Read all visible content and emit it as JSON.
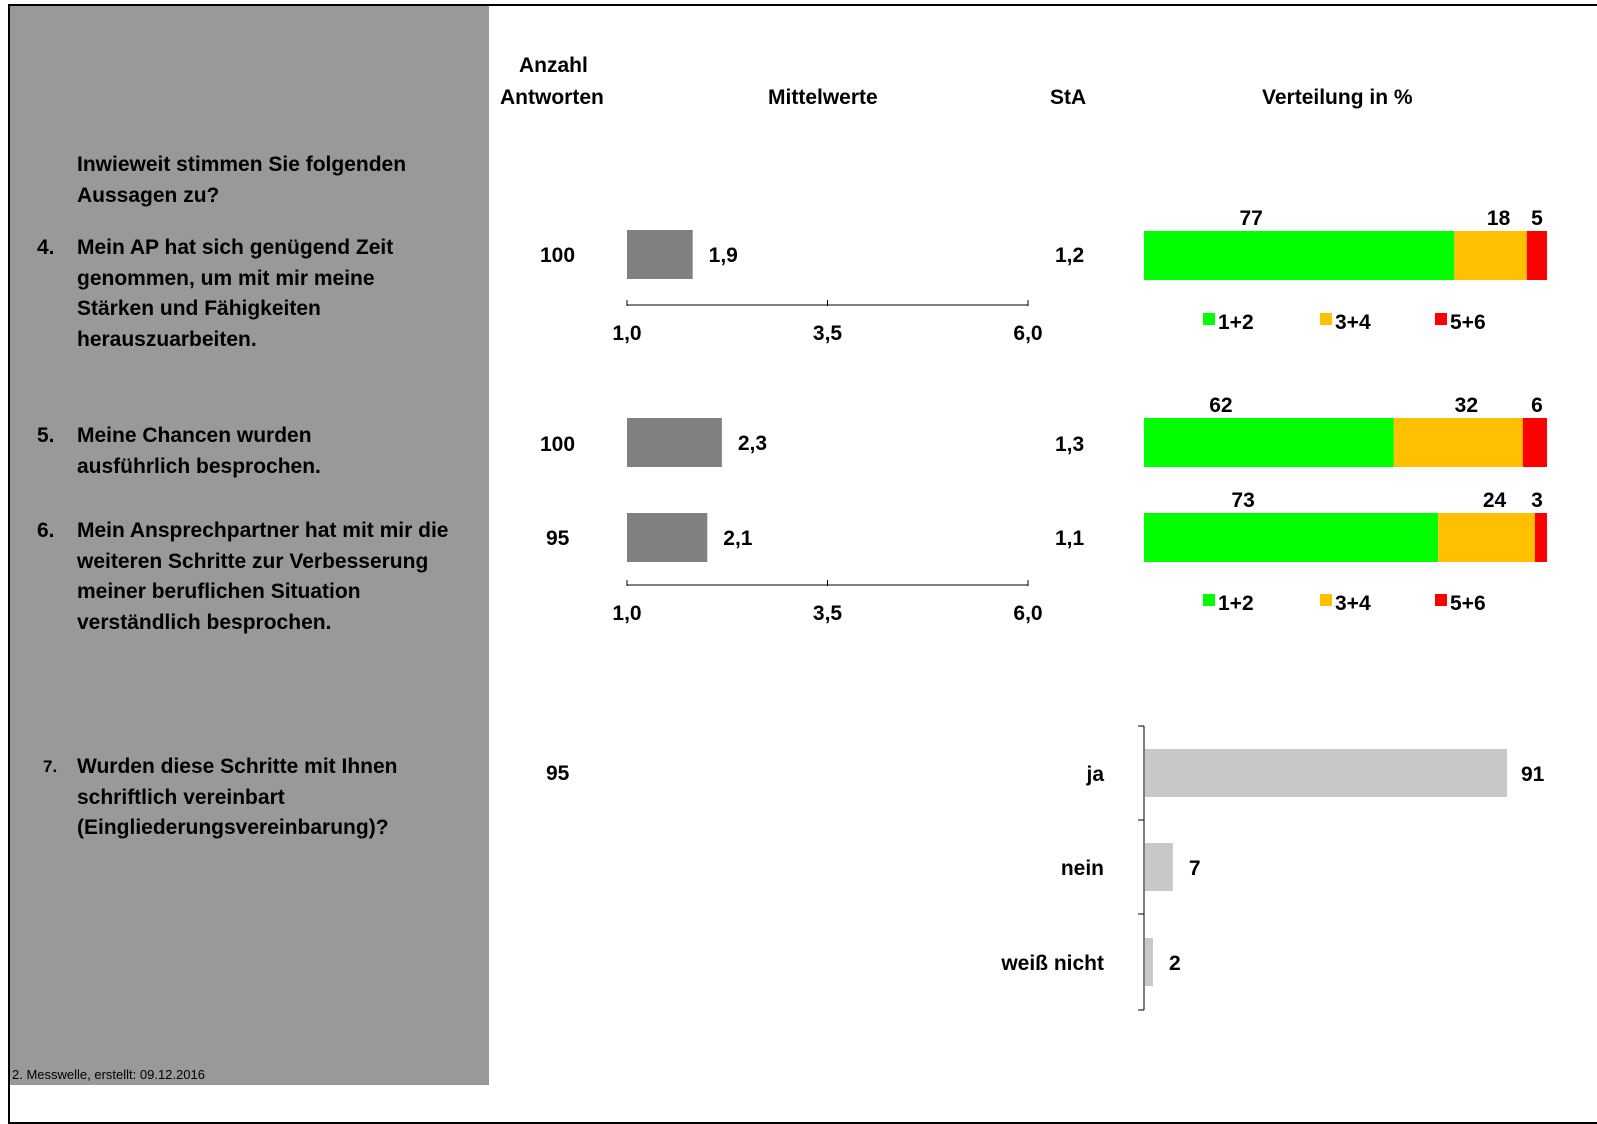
{
  "header": {
    "count_label_1": "Anzahl",
    "count_label_2": "Antworten",
    "means_label": "Mittelwerte",
    "sd_label": "StA",
    "dist_label": "Verteilung in %"
  },
  "intro": "Inwieweit stimmen Sie folgenden Aussagen zu?",
  "questions": [
    {
      "num": "4.",
      "text": "Mein AP hat sich genügend Zeit genommen, um mit mir meine Stärken und Fähigkeiten herauszuarbeiten.",
      "n": "100",
      "mean_label": "1,9",
      "sd": "1,2"
    },
    {
      "num": "5.",
      "text": "Meine Chancen wurden ausführlich besprochen.",
      "n": "100",
      "mean_label": "2,3",
      "sd": "1,3"
    },
    {
      "num": "6.",
      "text": "Mein Ansprechpartner hat mit mir die weiteren Schritte zur Verbesserung meiner beruflichen Situation verständlich besprochen.",
      "n": "95",
      "mean_label": "2,1",
      "sd": "1,1"
    },
    {
      "num": "7.",
      "text": "Wurden diese Schritte mit Ihnen schriftlich vereinbart (Eingliederungsvereinbarung)?",
      "n": "95"
    }
  ],
  "axis_ticks": [
    "1,0",
    "3,5",
    "6,0"
  ],
  "legend": [
    "1+2",
    "3+4",
    "5+6"
  ],
  "colors": {
    "sidebar": "#999999",
    "mean_bar": "#808080",
    "green": "#00FF00",
    "orange": "#FFC000",
    "red": "#FF0000",
    "grey_bar": "#C8C8C8"
  },
  "footer": "2. Messwelle, erstellt: 09.12.2016",
  "chart_data": [
    {
      "type": "bar",
      "title": "Mittelwerte",
      "categories": [
        "4.",
        "5.",
        "6."
      ],
      "values": [
        1.9,
        2.3,
        2.1
      ],
      "xlim": [
        1.0,
        6.0
      ]
    },
    {
      "type": "bar",
      "stacked": true,
      "title": "Verteilung in %",
      "categories": [
        "4.",
        "5.",
        "6."
      ],
      "series": [
        {
          "name": "1+2",
          "values": [
            77,
            62,
            73
          ]
        },
        {
          "name": "3+4",
          "values": [
            18,
            32,
            24
          ]
        },
        {
          "name": "5+6",
          "values": [
            5,
            6,
            3
          ]
        }
      ],
      "xlim": [
        0,
        100
      ]
    },
    {
      "type": "bar",
      "categories": [
        "ja",
        "nein",
        "weiß nicht"
      ],
      "values": [
        91,
        7,
        2
      ],
      "xlim": [
        0,
        100
      ]
    }
  ]
}
